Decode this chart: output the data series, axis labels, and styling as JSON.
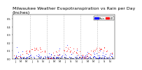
{
  "title": "Milwaukee Weather Evapotranspiration vs Rain per Day\n(Inches)",
  "title_fontsize": 4.5,
  "background_color": "#ffffff",
  "legend_labels": [
    "Rain",
    "ET"
  ],
  "legend_colors": [
    "#0000ff",
    "#ff0000"
  ],
  "ylim": [
    0.0,
    0.55
  ],
  "xlim": [
    0,
    37
  ],
  "vline_positions": [
    6.5,
    12.5,
    18.5,
    24.5,
    30.5
  ],
  "ytick_labels": [
    "0.0",
    "0.1",
    "0.2",
    "0.3",
    "0.4",
    "0.5"
  ],
  "ytick_vals": [
    0.0,
    0.1,
    0.2,
    0.3,
    0.4,
    0.5
  ],
  "xtick_positions": [
    1,
    3,
    5,
    7,
    9,
    11,
    13,
    15,
    17,
    19,
    21,
    23,
    25,
    27,
    29,
    31,
    33,
    35
  ],
  "xtick_labels": [
    "J",
    "M",
    "M",
    "J",
    "S",
    "N",
    "J",
    "M",
    "M",
    "J",
    "S",
    "N",
    "J",
    "M",
    "M",
    "J",
    "S",
    "N"
  ]
}
